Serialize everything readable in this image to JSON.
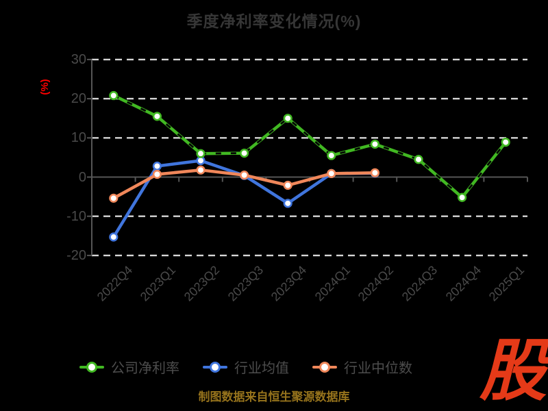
{
  "title": "季度净利率变化情况(%)",
  "source_note": "制图数据来自恒生聚源数据库",
  "logo_text": "股",
  "colors": {
    "background": "#000000",
    "title_text": "#363636",
    "axis_text": "#4a4a4a",
    "axis_line": "#565656",
    "gridline": "#d6d6d6",
    "ylabel_red": "#ff0000",
    "source_gold": "#96731c",
    "logo_red": "#e53a18",
    "series_green": "#41b822",
    "series_blue": "#4075dd",
    "series_orange": "#f0875a"
  },
  "chart_data": {
    "type": "line",
    "title": "季度净利率变化情况(%)",
    "xlabel": "",
    "ylabel": "(%)",
    "ylim": [
      -20,
      30
    ],
    "ytick_step": 10,
    "yticks": [
      30,
      20,
      10,
      0,
      -10,
      -20
    ],
    "grid": "horizontal dashed, solid zero line",
    "legend_position": "bottom",
    "categories": [
      "2022Q4",
      "2023Q1",
      "2023Q2",
      "2023Q3",
      "2023Q4",
      "2024Q1",
      "2024Q2",
      "2024Q3",
      "2024Q4",
      "2025Q1"
    ],
    "series": [
      {
        "name": "公司净利率",
        "color": "#41b822",
        "marker": "white-filled circle",
        "dash_overlay": true,
        "values": [
          20.8,
          15.5,
          6.0,
          6.1,
          15.0,
          5.5,
          8.4,
          4.5,
          -5.2,
          8.9
        ]
      },
      {
        "name": "行业均值",
        "color": "#4075dd",
        "marker": "white-filled circle",
        "dash_overlay": false,
        "values": [
          -15.3,
          2.8,
          4.2,
          0.4,
          -6.7,
          0.9,
          1.0,
          null,
          null,
          null
        ]
      },
      {
        "name": "行业中位数",
        "color": "#f0875a",
        "marker": "white-filled circle",
        "dash_overlay": false,
        "values": [
          -5.4,
          0.7,
          1.8,
          0.5,
          -2.1,
          0.9,
          1.1,
          null,
          null,
          null
        ]
      }
    ]
  }
}
